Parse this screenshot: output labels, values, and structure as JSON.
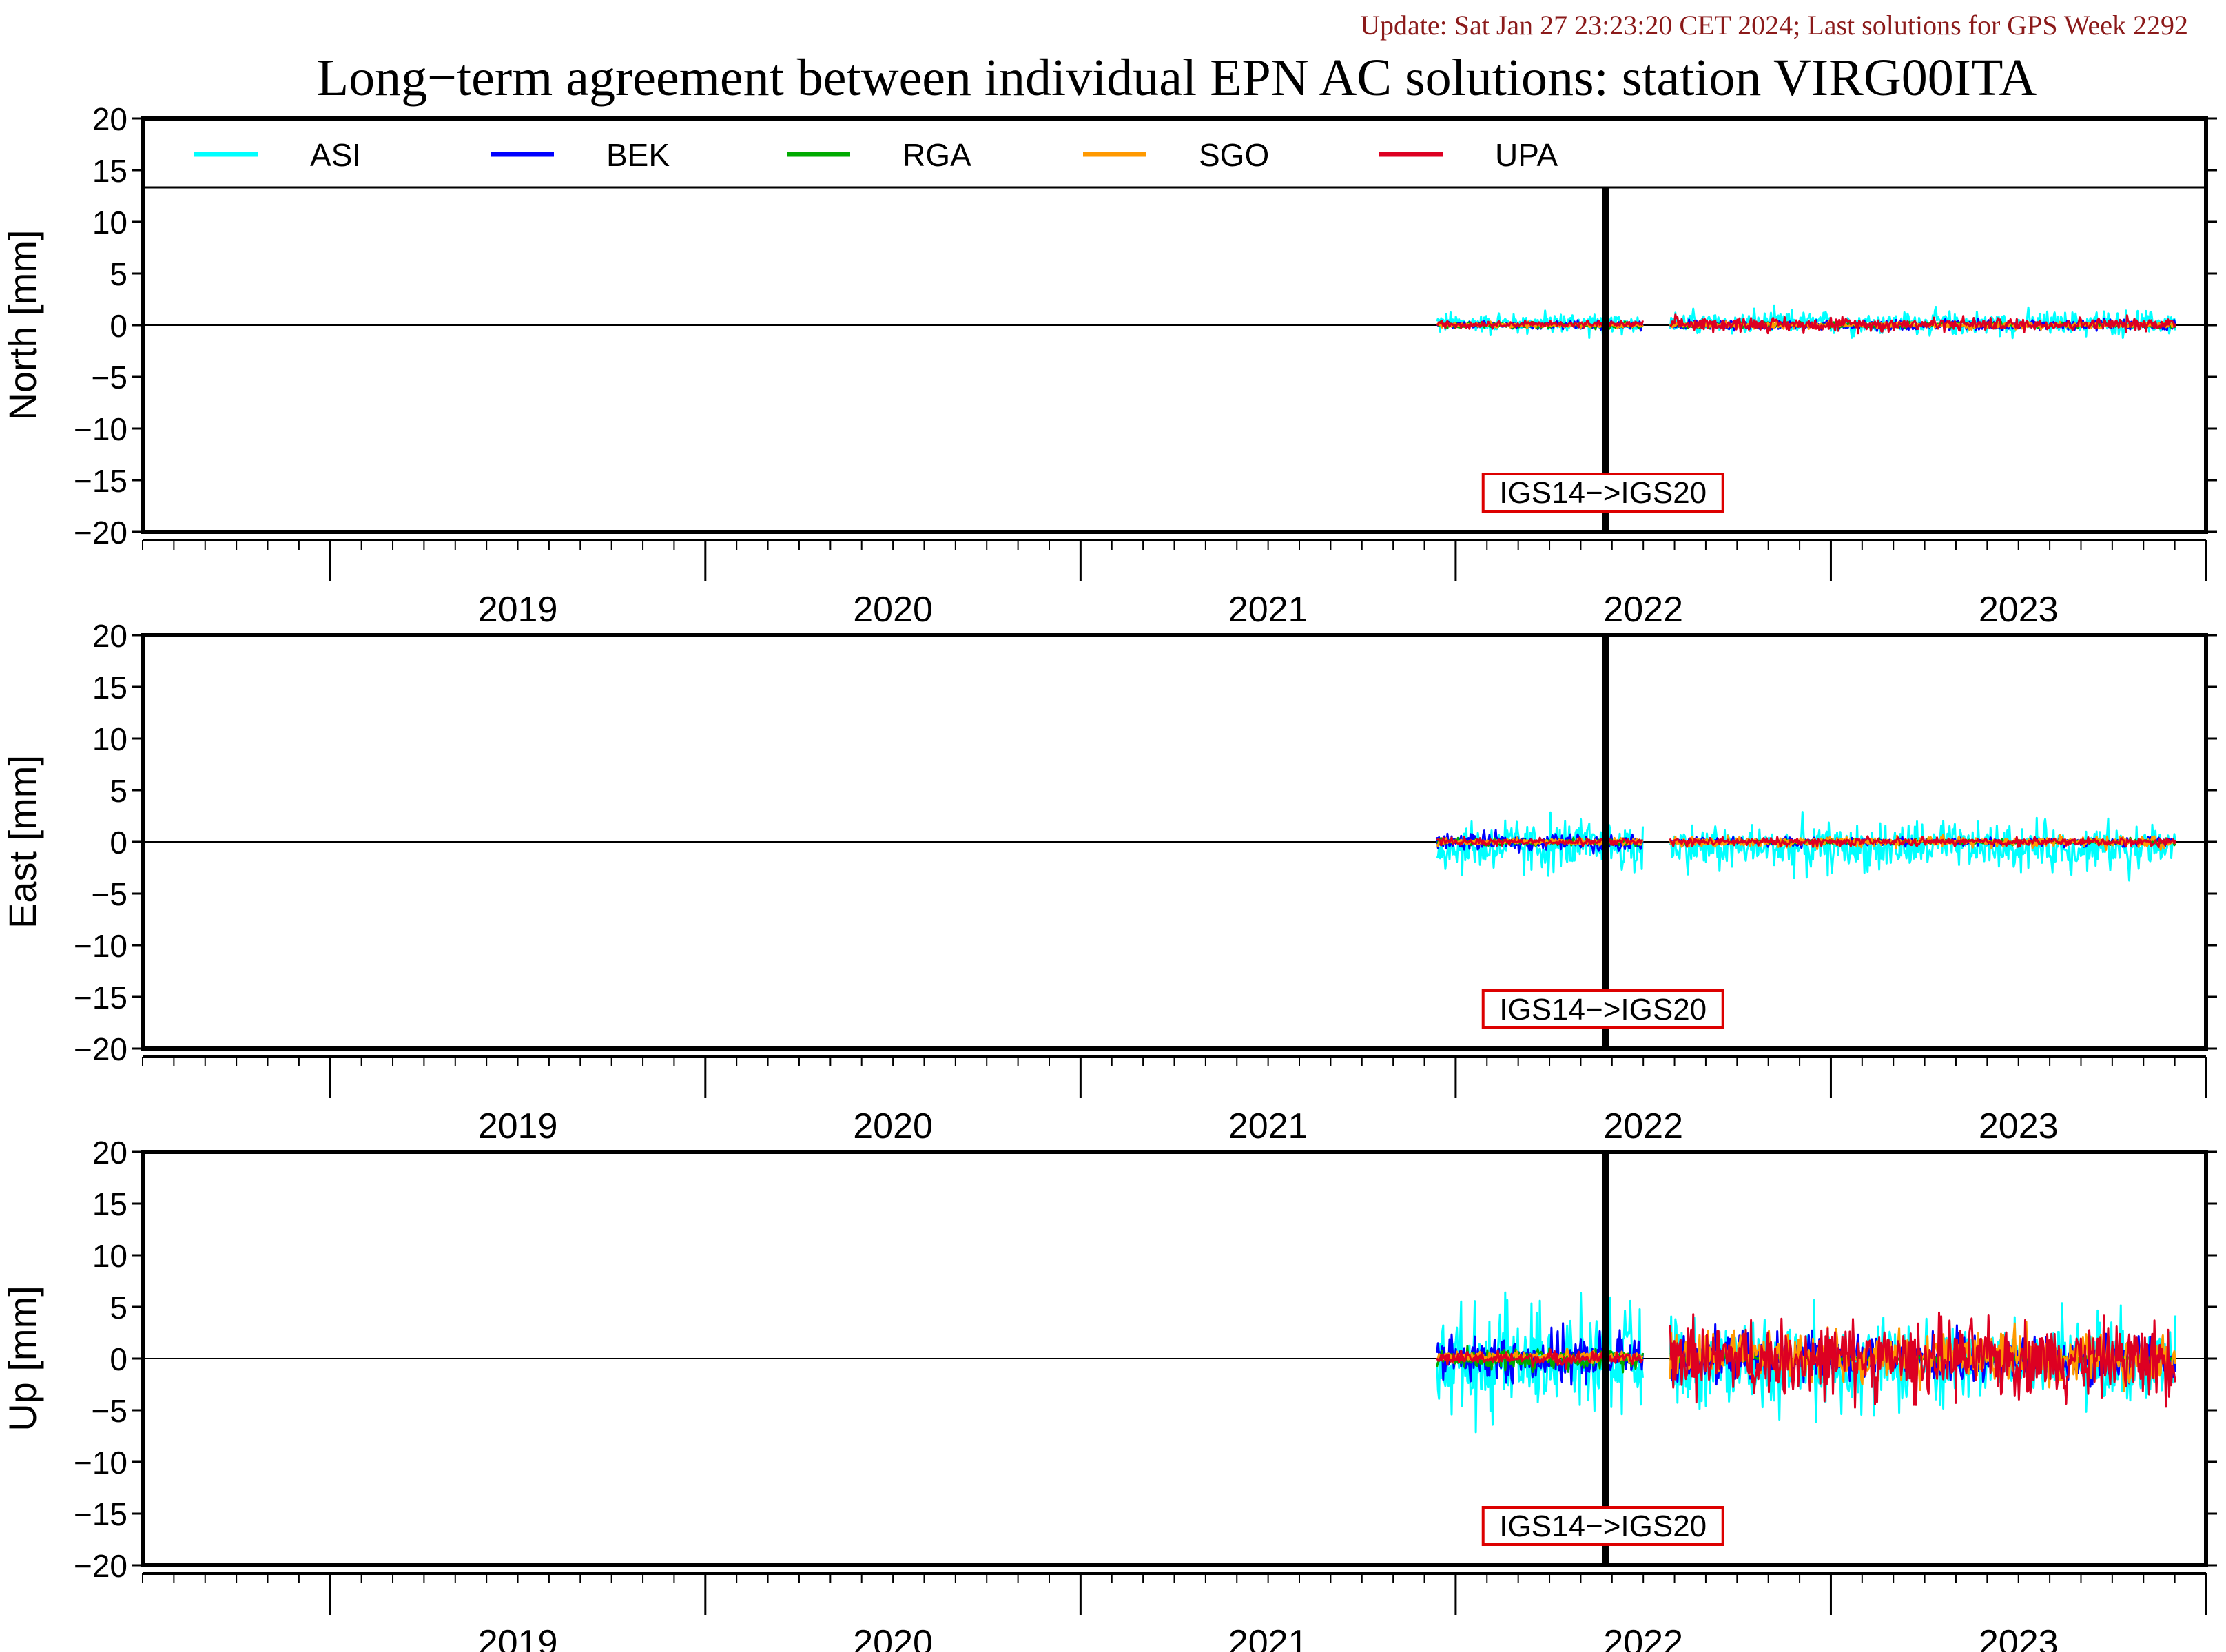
{
  "header": {
    "update_text": "Update: Sat Jan 27 23:23:20 CET 2024; Last solutions for GPS Week 2292",
    "update_color": "#8b1a1a",
    "title": "Long−term agreement between individual EPN AC solutions: station VIRG00ITA"
  },
  "chart_data": {
    "type": "line",
    "x_unit": "year",
    "xlim": [
      2018.5,
      2024.0
    ],
    "x_ticks": [
      "2019",
      "2020",
      "2021",
      "2022",
      "2023"
    ],
    "y_ticks": [
      "20",
      "15",
      "10",
      "5",
      "0",
      "−5",
      "−10",
      "−15",
      "−20"
    ],
    "ylim": [
      -20,
      20
    ],
    "grid": false,
    "legend_position": "top-left",
    "legend": [
      {
        "name": "ASI",
        "color": "#00ffff"
      },
      {
        "name": "BEK",
        "color": "#0000ff"
      },
      {
        "name": "RGA",
        "color": "#00aa00"
      },
      {
        "name": "SGO",
        "color": "#ff9900"
      },
      {
        "name": "UPA",
        "color": "#dd0022"
      }
    ],
    "reference_line_y": 0,
    "annotation": {
      "label": "IGS14−>IGS20",
      "x": 2022.4,
      "border_color": "#dd0000"
    },
    "data_gap": [
      2022.5,
      2022.57
    ],
    "data_range": [
      2021.95,
      2023.92
    ],
    "panels": [
      {
        "ylabel": "North [mm]",
        "series": [
          {
            "name": "ASI",
            "before_amp": 1.6,
            "after_amp": 1.8,
            "bias": 0.2
          },
          {
            "name": "BEK",
            "before_amp": 0.6,
            "after_amp": 0.7,
            "bias": 0.0
          },
          {
            "name": "RGA",
            "before_amp": 0.5,
            "after_amp": 0.4,
            "bias": 0.0
          },
          {
            "name": "SGO",
            "before_amp": 0.4,
            "after_amp": 0.5,
            "bias": 0.0
          },
          {
            "name": "UPA",
            "before_amp": 0.5,
            "after_amp": 1.0,
            "bias": 0.1
          }
        ]
      },
      {
        "ylabel": "East [mm]",
        "series": [
          {
            "name": "ASI",
            "before_amp": 4.2,
            "after_amp": 3.5,
            "bias": -0.5
          },
          {
            "name": "BEK",
            "before_amp": 1.2,
            "after_amp": 0.6,
            "bias": 0.0
          },
          {
            "name": "RGA",
            "before_amp": 0.5,
            "after_amp": 0.4,
            "bias": 0.0
          },
          {
            "name": "SGO",
            "before_amp": 0.5,
            "after_amp": 0.8,
            "bias": 0.0
          },
          {
            "name": "UPA",
            "before_amp": 0.5,
            "after_amp": 0.6,
            "bias": 0.0
          }
        ]
      },
      {
        "ylabel": "Up [mm]",
        "series": [
          {
            "name": "ASI",
            "before_amp": 7.5,
            "after_amp": 6.5,
            "bias": -0.3
          },
          {
            "name": "BEK",
            "before_amp": 3.5,
            "after_amp": 3.5,
            "bias": 0.0
          },
          {
            "name": "RGA",
            "before_amp": 1.5,
            "after_amp": 0.5,
            "bias": 0.0
          },
          {
            "name": "SGO",
            "before_amp": 0.8,
            "after_amp": 3.5,
            "bias": 0.2
          },
          {
            "name": "UPA",
            "before_amp": 1.0,
            "after_amp": 5.5,
            "bias": 0.0
          }
        ]
      }
    ]
  }
}
